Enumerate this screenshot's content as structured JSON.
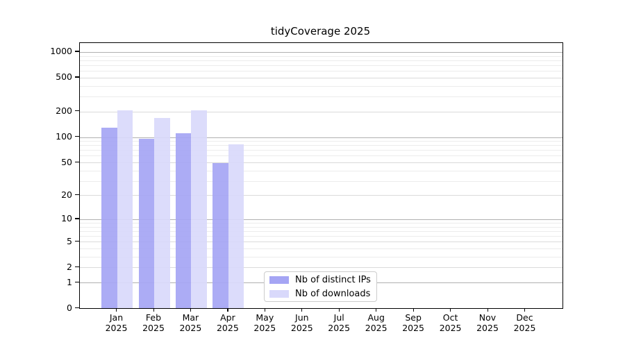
{
  "chart_data": {
    "type": "bar",
    "title": "tidyCoverage 2025",
    "categories": [
      "Jan",
      "Feb",
      "Mar",
      "Apr",
      "May",
      "Jun",
      "Jul",
      "Aug",
      "Sep",
      "Oct",
      "Nov",
      "Dec"
    ],
    "category_year": "2025",
    "xlabel": "",
    "ylabel": "",
    "series": [
      {
        "name": "Nb of distinct IPs",
        "color": "#a5a5f4",
        "values": [
          128,
          95,
          112,
          49,
          0,
          0,
          0,
          0,
          0,
          0,
          0,
          0
        ]
      },
      {
        "name": "Nb of downloads",
        "color": "#d9d9fb",
        "values": [
          205,
          168,
          205,
          82,
          0,
          0,
          0,
          0,
          0,
          0,
          0,
          0
        ]
      }
    ],
    "yticks": [
      0,
      1,
      2,
      5,
      10,
      20,
      50,
      100,
      200,
      500,
      1000
    ],
    "yscale": "log10(value+1)",
    "ylim": [
      0,
      1280
    ],
    "grid": true,
    "legend_position": "inside-bottom-center"
  }
}
